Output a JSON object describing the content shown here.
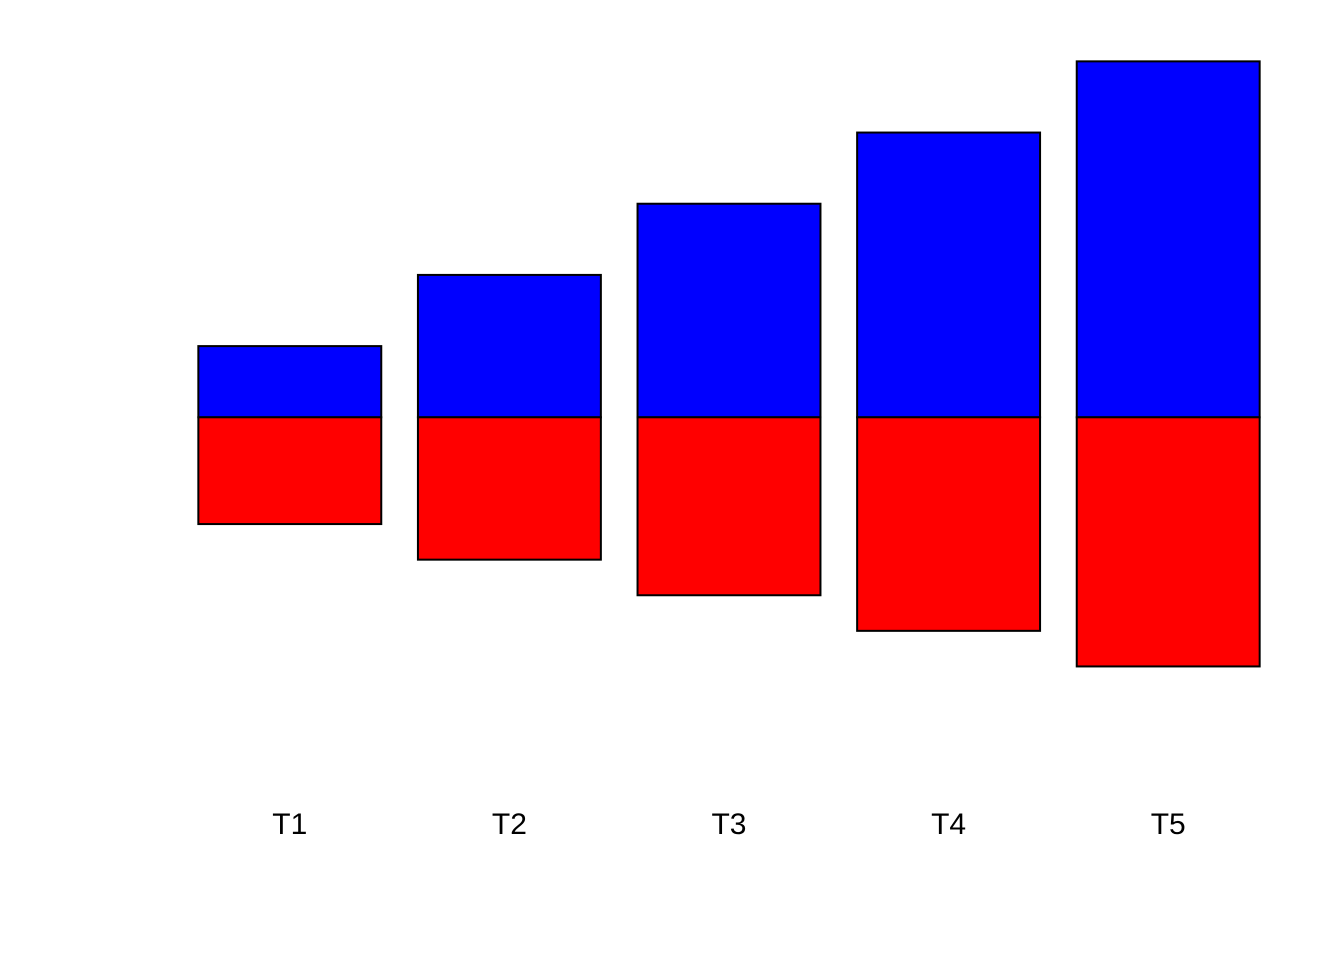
{
  "chart_data": {
    "type": "bar",
    "stacked": "diverging",
    "categories": [
      "T1",
      "T2",
      "T3",
      "T4",
      "T5"
    ],
    "series": [
      {
        "values": [
          1,
          2,
          3,
          4,
          5
        ],
        "color": "#0000FF"
      },
      {
        "values": [
          -1.5,
          -2,
          -2.5,
          -3,
          -3.5
        ],
        "color": "#FF0000"
      }
    ],
    "title": "",
    "xlabel": "",
    "ylabel": "",
    "ylim": [
      -6.5,
      5.3
    ],
    "grid": false,
    "axes_visible": false,
    "legend": "none",
    "bar_outline": "#000000"
  }
}
